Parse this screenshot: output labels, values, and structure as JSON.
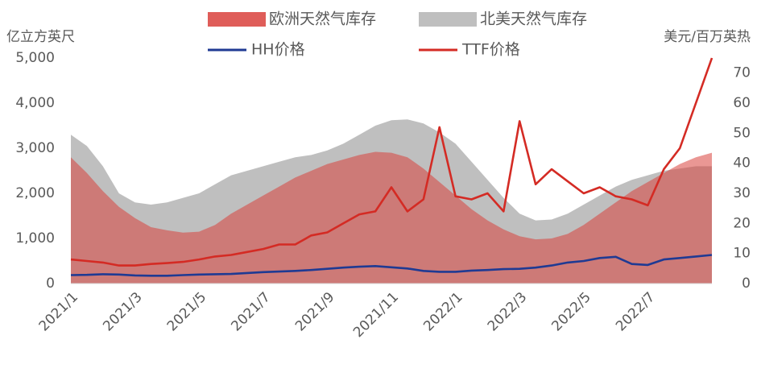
{
  "chart_data": {
    "type": "area-line",
    "y_label": "亿立方英尺",
    "y2_label": "美元/百万英热",
    "categories": [
      "2021/1",
      null,
      null,
      null,
      "2021/3",
      null,
      null,
      null,
      "2021/5",
      null,
      null,
      null,
      "2021/7",
      null,
      null,
      null,
      "2021/9",
      null,
      null,
      null,
      "2021/11",
      null,
      null,
      null,
      "2022/1",
      null,
      null,
      null,
      "2022/3",
      null,
      null,
      null,
      "2022/5",
      null,
      null,
      null,
      "2022/7",
      null,
      null,
      null,
      null
    ],
    "ylim": [
      0,
      5000
    ],
    "yticks": [
      0,
      {
        "value": 1000,
        "label": "1,000"
      },
      {
        "value": 2000,
        "label": "2,000"
      },
      {
        "value": 3000,
        "label": "3,000"
      },
      {
        "value": 4000,
        "label": "4,000"
      },
      {
        "value": 5000,
        "label": "5,000"
      }
    ],
    "y2lim": [
      0,
      75
    ],
    "y2ticks": [
      0,
      10,
      20,
      30,
      40,
      50,
      60,
      70
    ],
    "series": [
      {
        "name": "欧洲天然气库存",
        "kind": "area",
        "color": "#d9413c",
        "values": [
          2800,
          2450,
          2050,
          1700,
          1450,
          1250,
          1180,
          1130,
          1150,
          1300,
          1550,
          1750,
          1950,
          2150,
          2350,
          2500,
          2650,
          2750,
          2850,
          2920,
          2900,
          2800,
          2550,
          2250,
          1950,
          1650,
          1400,
          1200,
          1050,
          980,
          1000,
          1100,
          1300,
          1550,
          1800,
          2050,
          2250,
          2450,
          2650,
          2800,
          2900
        ]
      },
      {
        "name": "北美天然气库存",
        "kind": "area",
        "color": "#bfbfbf",
        "values": [
          3300,
          3050,
          2600,
          2000,
          1800,
          1750,
          1800,
          1900,
          2000,
          2200,
          2400,
          2500,
          2600,
          2700,
          2800,
          2850,
          2950,
          3100,
          3300,
          3500,
          3620,
          3640,
          3550,
          3350,
          3100,
          2700,
          2300,
          1900,
          1550,
          1400,
          1420,
          1550,
          1750,
          1950,
          2150,
          2300,
          2400,
          2500,
          2550,
          2600,
          2600
        ]
      },
      {
        "name": "HH价格",
        "kind": "line",
        "axis": "y2",
        "color": "#1f3a93",
        "values": [
          2.8,
          2.9,
          3.1,
          3.0,
          2.7,
          2.6,
          2.6,
          2.8,
          3.0,
          3.1,
          3.2,
          3.5,
          3.8,
          4.0,
          4.2,
          4.5,
          4.9,
          5.3,
          5.6,
          5.8,
          5.4,
          5.0,
          4.2,
          3.9,
          3.9,
          4.3,
          4.5,
          4.8,
          4.9,
          5.3,
          6.0,
          7.0,
          7.5,
          8.5,
          8.9,
          6.5,
          6.2,
          8.0,
          8.5,
          9.0,
          9.5
        ]
      },
      {
        "name": "TTF价格",
        "kind": "line",
        "axis": "y2",
        "color": "#d42b24",
        "values": [
          8,
          7.5,
          7,
          6,
          6,
          6.5,
          6.8,
          7.2,
          8,
          9,
          9.5,
          10.5,
          11.5,
          13,
          13,
          16,
          17,
          20,
          23,
          24,
          32,
          24,
          28,
          52,
          29,
          28,
          30,
          24,
          54,
          33,
          38,
          34,
          30,
          32,
          29,
          28,
          26,
          38,
          45,
          60,
          75
        ]
      }
    ]
  }
}
